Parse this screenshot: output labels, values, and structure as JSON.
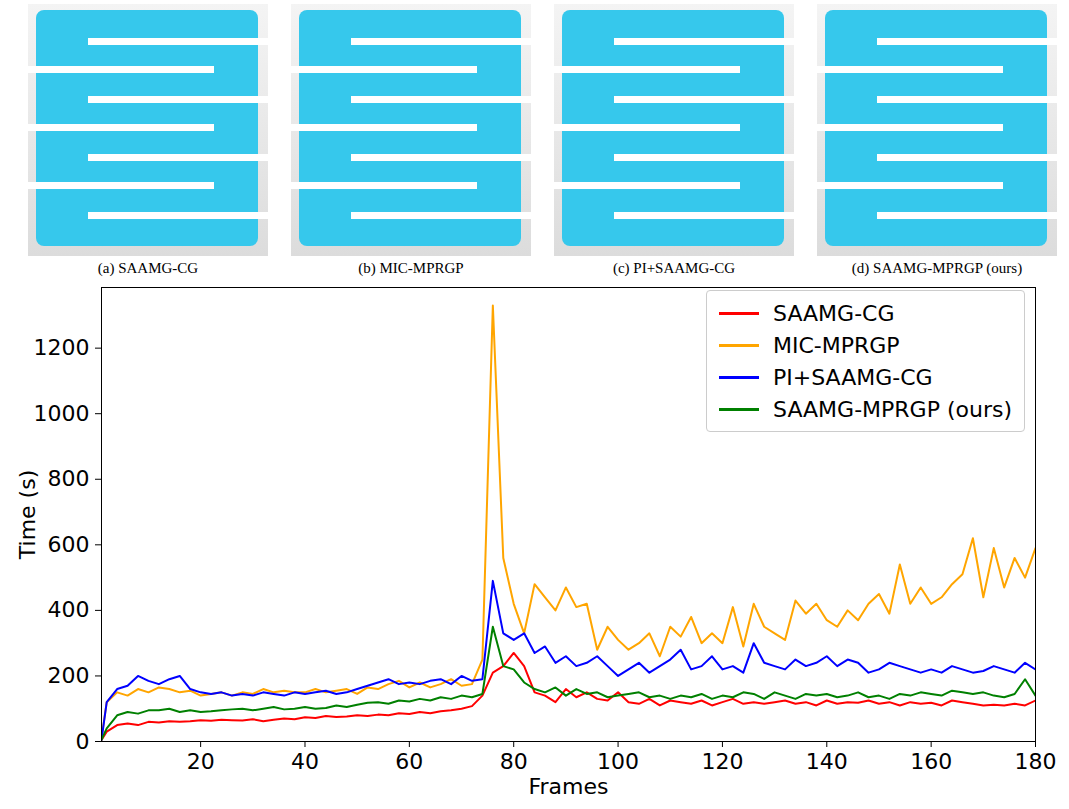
{
  "panels": {
    "captions": [
      "(a) SAAMG-CG",
      "(b) MIC-MPRGP",
      "(c) PI+SAAMG-CG",
      "(d) SAAMG-MPRGP (ours)"
    ]
  },
  "chart_data": {
    "type": "line",
    "x_label": "Frames",
    "y_label": "Time (s)",
    "xlim": [
      1,
      180
    ],
    "ylim": [
      0,
      1385
    ],
    "xticks": [
      20,
      40,
      60,
      80,
      100,
      120,
      140,
      160,
      180
    ],
    "yticks": [
      0,
      200,
      400,
      600,
      800,
      1000,
      1200
    ],
    "grid": false,
    "legend": "upper right",
    "x": [
      1,
      2,
      4,
      6,
      8,
      10,
      12,
      14,
      16,
      18,
      20,
      22,
      24,
      26,
      28,
      30,
      32,
      34,
      36,
      38,
      40,
      42,
      44,
      46,
      48,
      50,
      52,
      54,
      56,
      58,
      60,
      62,
      64,
      66,
      68,
      70,
      72,
      74,
      76,
      78,
      80,
      82,
      84,
      86,
      88,
      90,
      92,
      94,
      96,
      98,
      100,
      102,
      104,
      106,
      108,
      110,
      112,
      114,
      116,
      118,
      120,
      122,
      124,
      126,
      128,
      130,
      132,
      134,
      136,
      138,
      140,
      142,
      144,
      146,
      148,
      150,
      152,
      154,
      156,
      158,
      160,
      162,
      164,
      166,
      168,
      170,
      172,
      174,
      176,
      178,
      180
    ],
    "series": [
      {
        "name": "SAAMG-CG",
        "color": "#ff0000",
        "values": [
          5,
          30,
          50,
          55,
          50,
          60,
          58,
          62,
          60,
          62,
          65,
          63,
          66,
          65,
          64,
          68,
          62,
          66,
          70,
          68,
          74,
          72,
          78,
          75,
          76,
          80,
          78,
          82,
          80,
          86,
          84,
          90,
          86,
          92,
          95,
          100,
          108,
          140,
          210,
          230,
          270,
          230,
          150,
          140,
          120,
          160,
          135,
          150,
          130,
          125,
          150,
          120,
          115,
          130,
          110,
          125,
          120,
          115,
          125,
          110,
          120,
          130,
          115,
          120,
          115,
          120,
          125,
          115,
          120,
          110,
          125,
          115,
          120,
          118,
          125,
          115,
          120,
          110,
          120,
          115,
          118,
          110,
          125,
          120,
          115,
          110,
          112,
          110,
          115,
          110,
          125
        ]
      },
      {
        "name": "MIC-MPRGP",
        "color": "#ffa500",
        "values": [
          10,
          120,
          150,
          140,
          160,
          150,
          165,
          160,
          150,
          155,
          140,
          145,
          150,
          140,
          150,
          145,
          160,
          150,
          155,
          150,
          150,
          160,
          150,
          155,
          160,
          145,
          165,
          160,
          175,
          185,
          165,
          180,
          165,
          175,
          190,
          170,
          175,
          250,
          1330,
          560,
          420,
          330,
          480,
          440,
          400,
          470,
          410,
          420,
          280,
          350,
          310,
          280,
          300,
          330,
          260,
          350,
          320,
          380,
          300,
          330,
          300,
          410,
          290,
          420,
          350,
          330,
          310,
          430,
          390,
          420,
          370,
          350,
          400,
          370,
          420,
          450,
          390,
          540,
          420,
          470,
          420,
          440,
          480,
          510,
          620,
          440,
          590,
          470,
          560,
          500,
          590
        ]
      },
      {
        "name": "PI+SAAMG-CG",
        "color": "#0000ff",
        "values": [
          5,
          120,
          160,
          170,
          200,
          185,
          175,
          190,
          200,
          160,
          150,
          145,
          150,
          140,
          145,
          140,
          150,
          145,
          140,
          150,
          145,
          150,
          155,
          145,
          150,
          160,
          170,
          180,
          190,
          175,
          180,
          175,
          185,
          190,
          175,
          200,
          185,
          190,
          490,
          330,
          310,
          330,
          270,
          290,
          240,
          260,
          230,
          240,
          260,
          230,
          200,
          220,
          240,
          210,
          230,
          250,
          280,
          220,
          230,
          260,
          220,
          230,
          210,
          300,
          240,
          230,
          220,
          250,
          230,
          240,
          260,
          230,
          250,
          240,
          210,
          220,
          240,
          230,
          220,
          210,
          220,
          210,
          230,
          220,
          210,
          215,
          230,
          220,
          210,
          240,
          220
        ]
      },
      {
        "name": "SAAMG-MPRGP (ours)",
        "color": "#008000",
        "values": [
          5,
          40,
          80,
          90,
          85,
          95,
          95,
          100,
          90,
          95,
          90,
          92,
          95,
          98,
          100,
          95,
          100,
          105,
          98,
          100,
          105,
          100,
          102,
          110,
          105,
          112,
          118,
          120,
          115,
          125,
          122,
          130,
          125,
          135,
          130,
          140,
          135,
          145,
          350,
          230,
          220,
          180,
          160,
          150,
          165,
          140,
          160,
          145,
          150,
          135,
          140,
          145,
          150,
          135,
          140,
          130,
          140,
          135,
          145,
          130,
          140,
          135,
          150,
          145,
          130,
          150,
          140,
          130,
          145,
          140,
          145,
          135,
          140,
          150,
          135,
          140,
          130,
          145,
          140,
          150,
          145,
          140,
          155,
          150,
          145,
          150,
          140,
          135,
          145,
          190,
          140
        ]
      }
    ]
  }
}
